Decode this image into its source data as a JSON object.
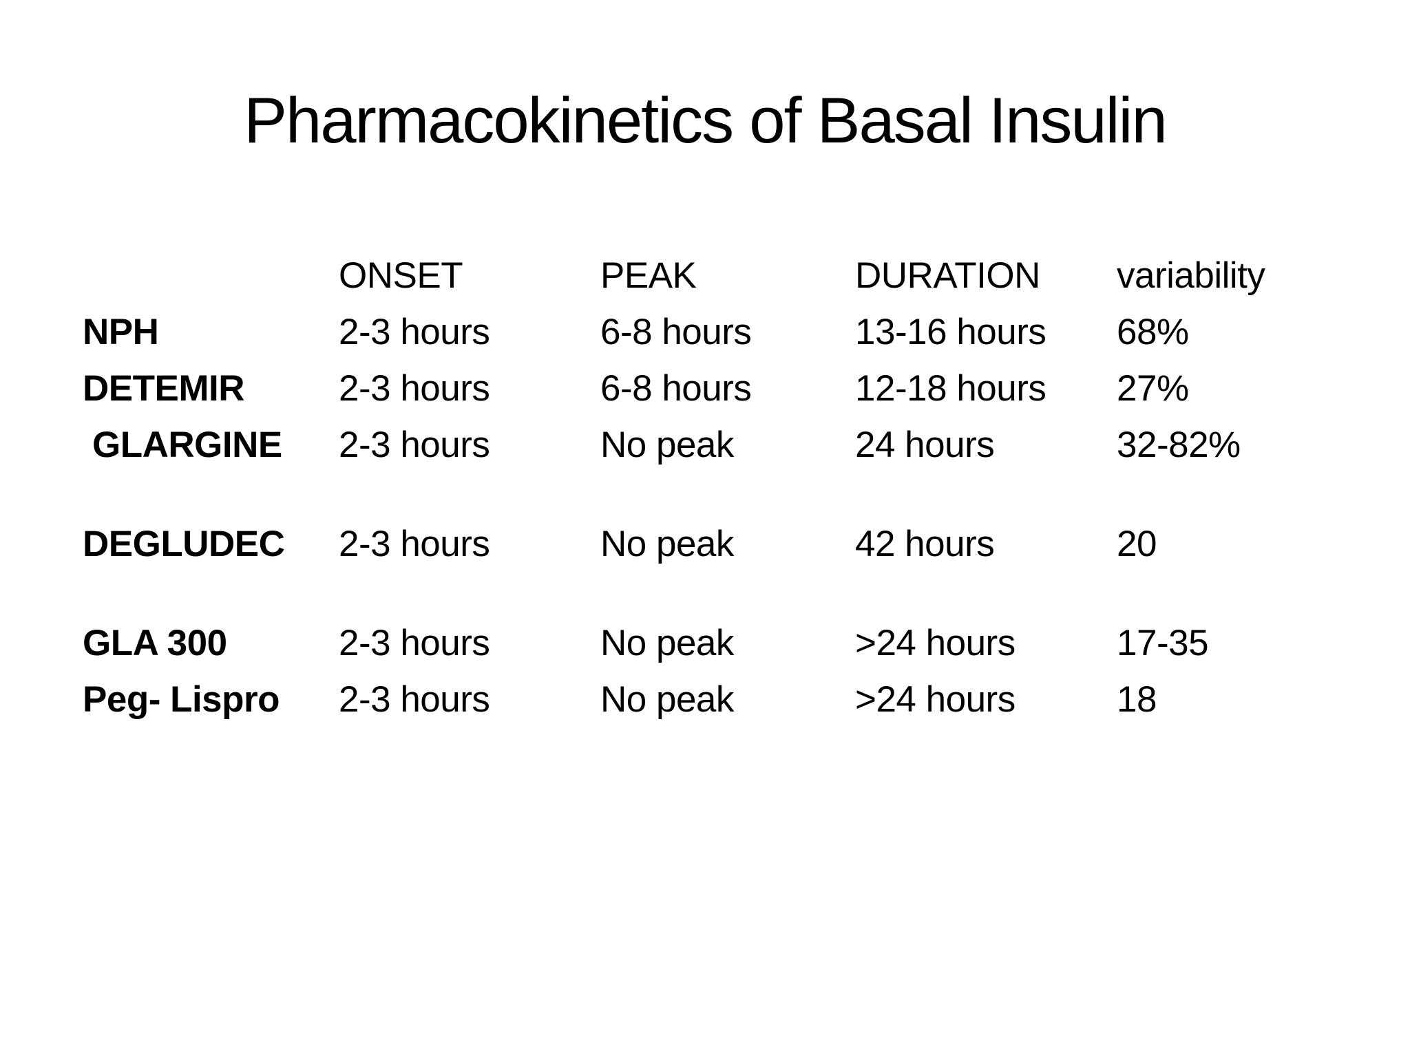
{
  "slide": {
    "title": "Pharmacokinetics of Basal Insulin",
    "background_color": "#ffffff",
    "text_color": "#000000"
  },
  "table": {
    "columns": [
      "ONSET",
      "PEAK",
      "DURATION",
      "variability"
    ],
    "rows": [
      {
        "name": "NPH",
        "onset": "2-3 hours",
        "peak": "6-8 hours",
        "duration": "13-16 hours",
        "variability": "68%"
      },
      {
        "name": "DETEMIR",
        "onset": "2-3 hours",
        "peak": "6-8 hours",
        "duration": "12-18 hours",
        "variability": "27%"
      },
      {
        "name": "GLARGINE",
        "onset": "2-3 hours",
        "peak": "No peak",
        "duration": "24 hours",
        "variability": "32-82%"
      },
      {
        "name": "DEGLUDEC",
        "onset": "2-3 hours",
        "peak": "No peak",
        "duration": "42 hours",
        "variability": "20"
      },
      {
        "name": "GLA 300",
        "onset": "2-3 hours",
        "peak": "No peak",
        "duration": ">24 hours",
        "variability": "17-35"
      },
      {
        "name": "Peg- Lispro",
        "onset": "2-3 hours",
        "peak": "No peak",
        "duration": ">24 hours",
        "variability": "18"
      }
    ]
  }
}
